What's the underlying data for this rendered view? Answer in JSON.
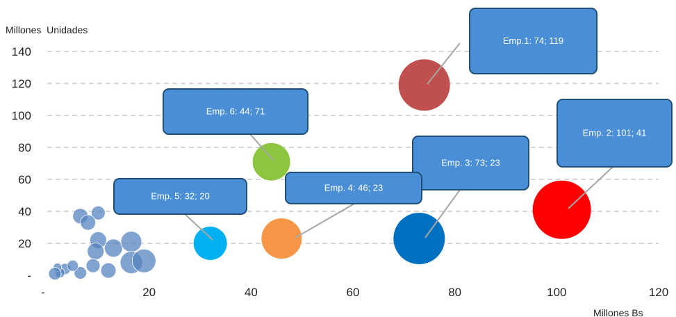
{
  "chart_data": {
    "type": "scatter",
    "subtype": "bubble",
    "xlabel": "Millones Bs",
    "ylabel": "Millones  Unidades",
    "xlim": [
      0,
      120
    ],
    "ylim": [
      0,
      140
    ],
    "x_ticks": [
      {
        "value": 0,
        "label": "-"
      },
      {
        "value": 20,
        "label": "20"
      },
      {
        "value": 40,
        "label": "40"
      },
      {
        "value": 60,
        "label": "60"
      },
      {
        "value": 80,
        "label": "80"
      },
      {
        "value": 100,
        "label": "100"
      },
      {
        "value": 120,
        "label": "120"
      }
    ],
    "y_ticks": [
      {
        "value": 0,
        "label": "-"
      },
      {
        "value": 20,
        "label": "20"
      },
      {
        "value": 40,
        "label": "40"
      },
      {
        "value": 60,
        "label": "60"
      },
      {
        "value": 80,
        "label": "80"
      },
      {
        "value": 100,
        "label": "100"
      },
      {
        "value": 120,
        "label": "120"
      },
      {
        "value": 140,
        "label": "140"
      }
    ],
    "grid": "horizontal-dashed",
    "labeled_bubbles": [
      {
        "label": "Emp.1: 74; 119",
        "x": 74,
        "y": 119,
        "color": "#c0504d"
      },
      {
        "label": "Emp. 2: 101; 41",
        "x": 101,
        "y": 41,
        "color": "#ff0000"
      },
      {
        "label": "Emp. 3: 73; 23",
        "x": 73,
        "y": 23,
        "color": "#0070c0"
      },
      {
        "label": "Emp. 4: 46; 23",
        "x": 46,
        "y": 23,
        "color": "#f79646"
      },
      {
        "label": "Emp. 5: 32; 20",
        "x": 32,
        "y": 20,
        "color": "#00b0f0"
      },
      {
        "label": "Emp. 6: 44; 71",
        "x": 44,
        "y": 71,
        "color": "#8dc63f"
      }
    ],
    "other_bubbles": {
      "color": "#4f81bd",
      "points": [
        {
          "x": 6.5,
          "y": 37
        },
        {
          "x": 10,
          "y": 39
        },
        {
          "x": 8,
          "y": 33
        },
        {
          "x": 10,
          "y": 22
        },
        {
          "x": 9.5,
          "y": 15
        },
        {
          "x": 13,
          "y": 17
        },
        {
          "x": 16.5,
          "y": 21
        },
        {
          "x": 16.5,
          "y": 8
        },
        {
          "x": 19,
          "y": 9
        },
        {
          "x": 12,
          "y": 3
        },
        {
          "x": 9,
          "y": 6
        },
        {
          "x": 6.5,
          "y": 1.5
        },
        {
          "x": 3.5,
          "y": 4
        },
        {
          "x": 5,
          "y": 6
        },
        {
          "x": 2.5,
          "y": 1.5
        },
        {
          "x": 2,
          "y": 5
        },
        {
          "x": 1.5,
          "y": 1
        }
      ]
    },
    "colors": {
      "callout_fill": "#4a8fd6",
      "callout_border": "#1f4e79",
      "gridline": "#bfbfbf",
      "leader_line": "#a6a6a6"
    }
  }
}
